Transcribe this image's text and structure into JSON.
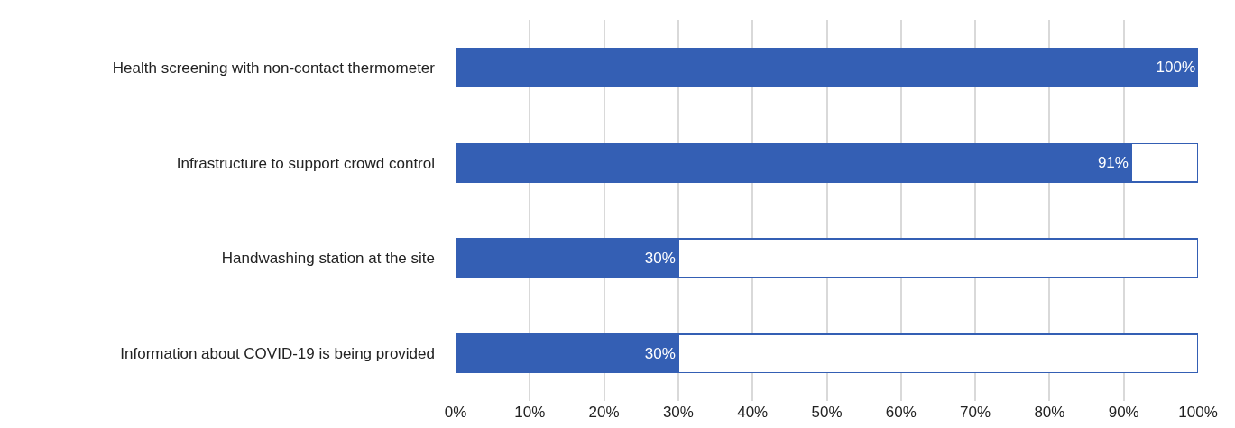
{
  "chart_data": {
    "type": "bar",
    "orientation": "horizontal",
    "stacked": true,
    "categories": [
      "Health screening with non-contact thermometer",
      "Infrastructure to support crowd control",
      "Handwashing station at the site",
      "Information about COVID-19 is being provided"
    ],
    "series": [
      {
        "color": "#345fb4",
        "values": [
          100,
          91,
          30,
          30
        ],
        "value_labels": [
          "100%",
          "91%",
          "30%",
          "30%"
        ]
      },
      {
        "color": "#ffffff",
        "values": [
          0,
          9,
          70,
          70
        ]
      }
    ],
    "xlim": [
      0,
      100
    ],
    "xticks": [
      {
        "value": 0,
        "label": "0%"
      },
      {
        "value": 10,
        "label": "10%"
      },
      {
        "value": 20,
        "label": "20%"
      },
      {
        "value": 30,
        "label": "30%"
      },
      {
        "value": 40,
        "label": "40%"
      },
      {
        "value": 50,
        "label": "50%"
      },
      {
        "value": 60,
        "label": "60%"
      },
      {
        "value": 70,
        "label": "70%"
      },
      {
        "value": 80,
        "label": "80%"
      },
      {
        "value": 90,
        "label": "90%"
      },
      {
        "value": 100,
        "label": "100%"
      }
    ],
    "grid": "x"
  }
}
